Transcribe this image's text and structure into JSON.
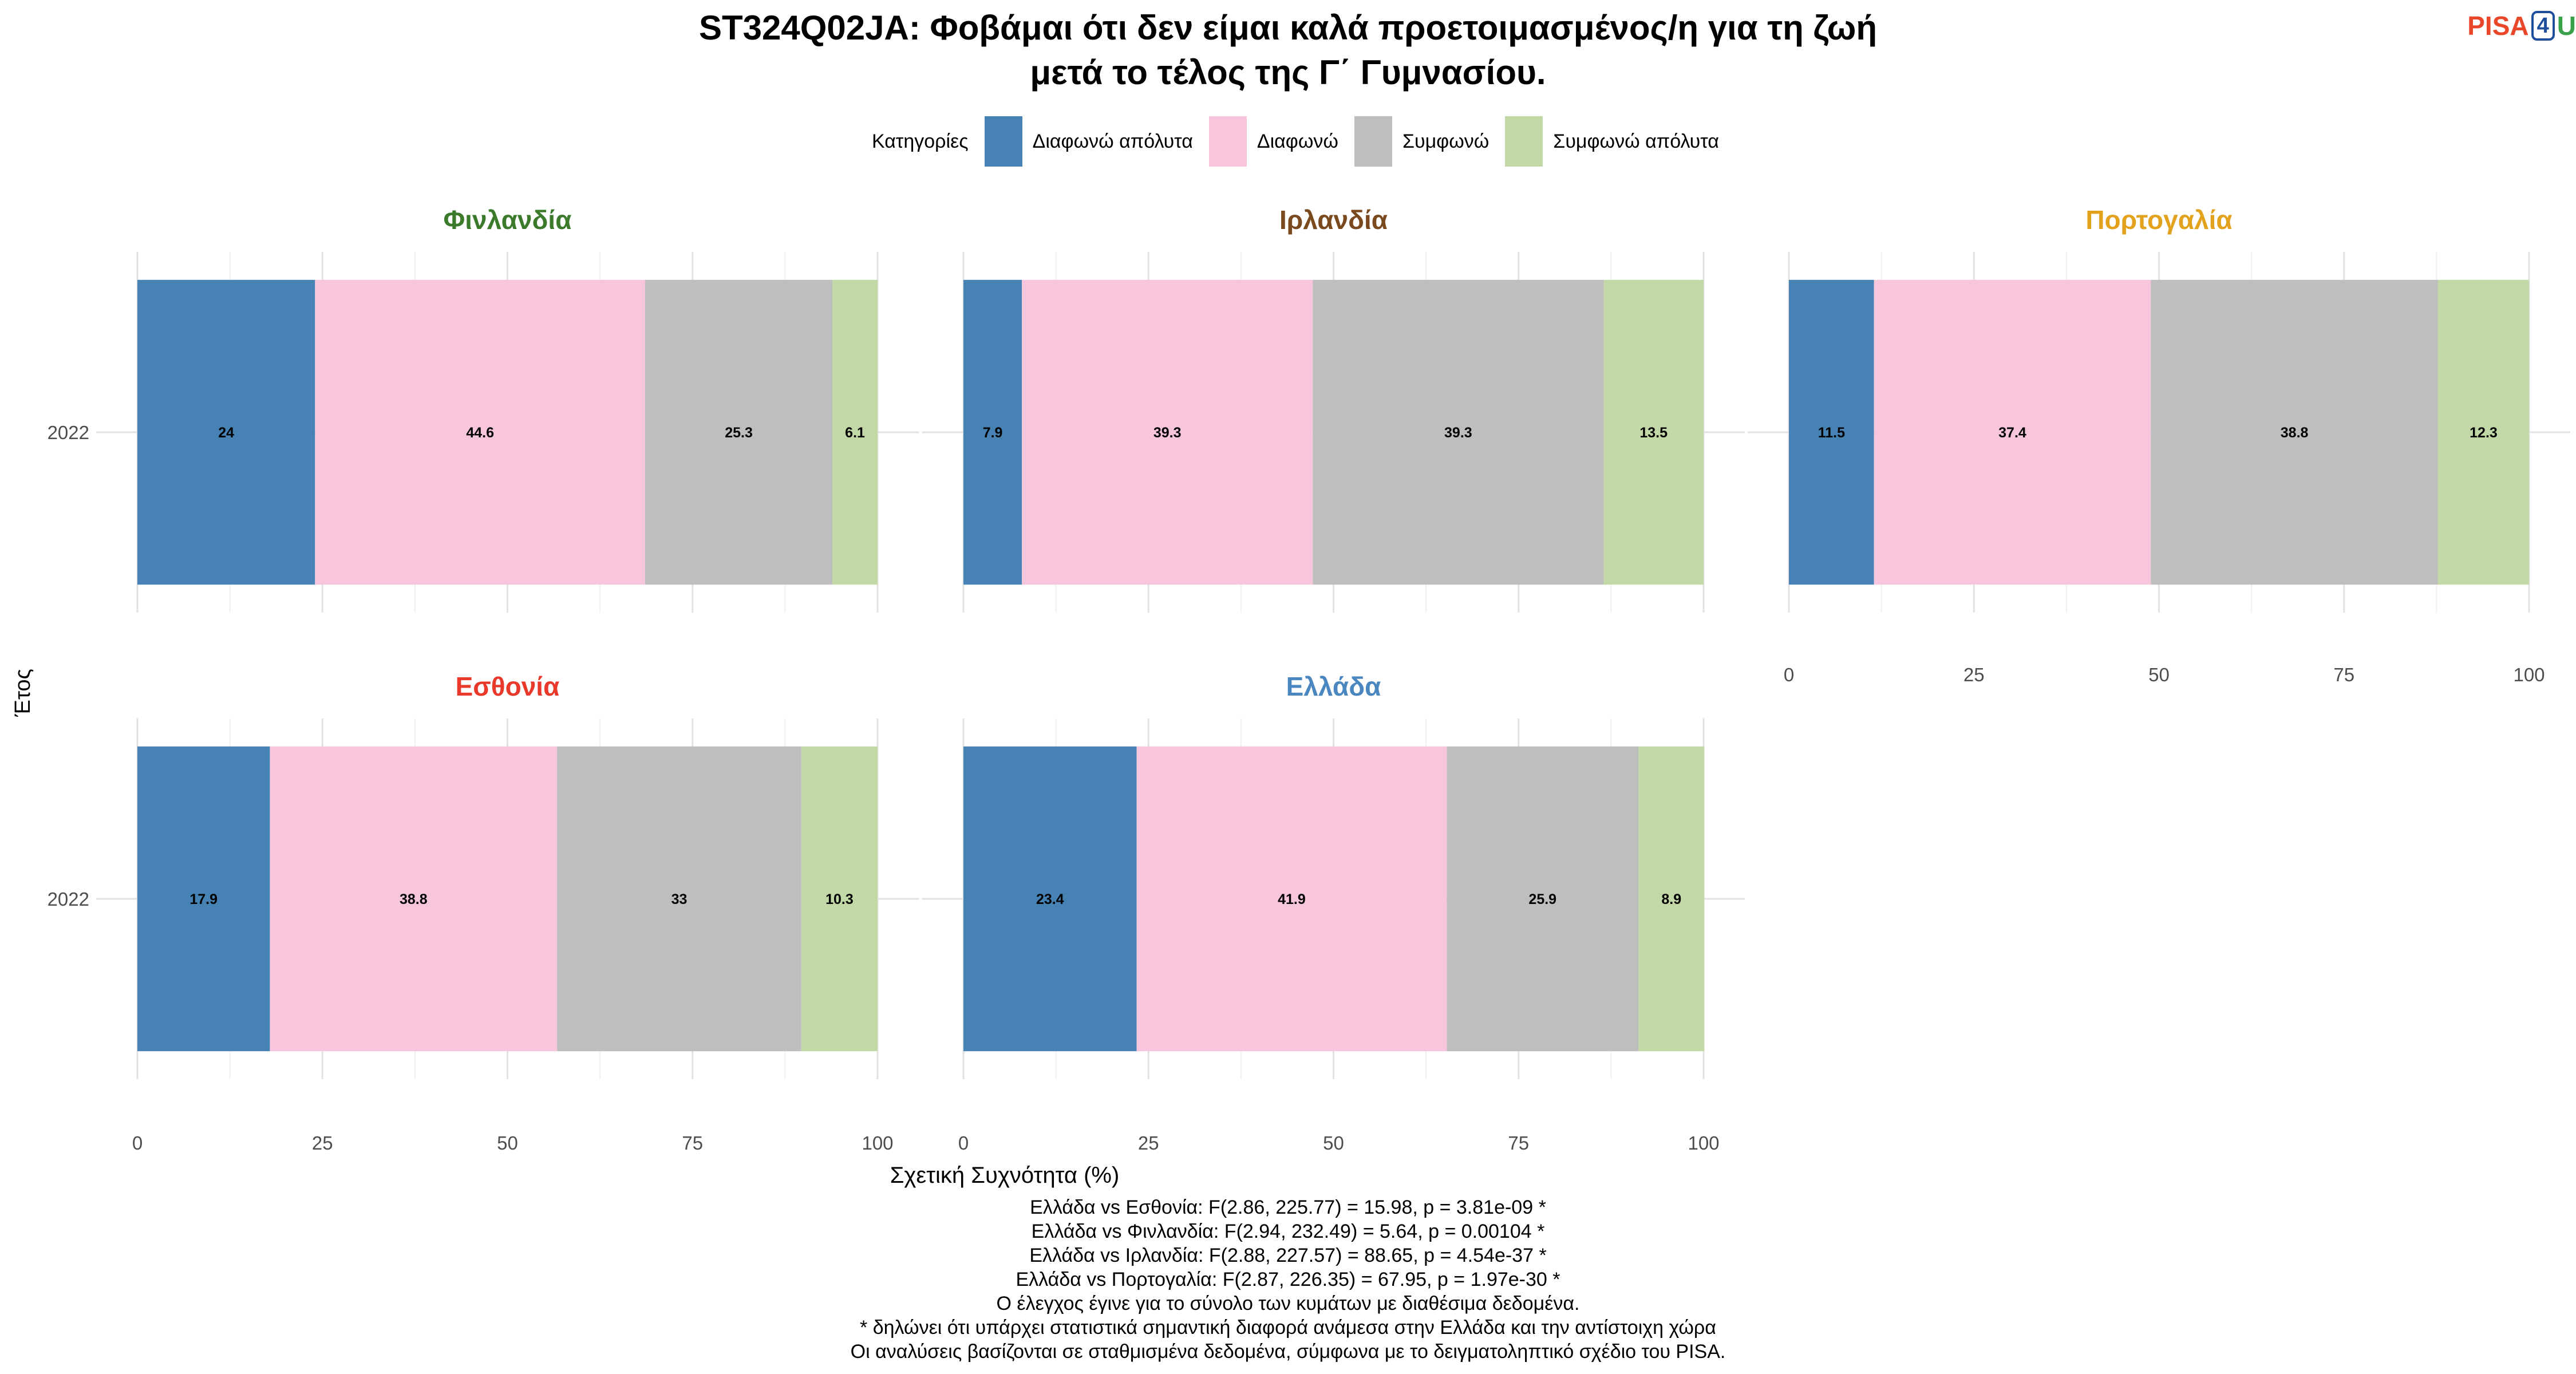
{
  "chart_data": {
    "type": "bar",
    "orientation": "horizontal",
    "stacked": true,
    "title_lines": [
      "ST324Q02JA: Φοβάμαι ότι δεν είμαι καλά προετοιμασμένος/η για τη ζωή",
      "μετά το τέλος της Γ΄ Γυμνασίου."
    ],
    "xlabel": "Σχετική Συχνότητα (%)",
    "ylabel": "Έτος",
    "xlim": [
      0,
      100
    ],
    "xticks": [
      0,
      25,
      50,
      75,
      100
    ],
    "grid": true,
    "legend_title": "Κατηγορίες",
    "legend_position": "top",
    "categories": [
      {
        "name": "Διαφωνώ απόλυτα",
        "color": "#4682b4"
      },
      {
        "name": "Διαφωνώ",
        "color": "#f7c6dc"
      },
      {
        "name": "Συμφωνώ",
        "color": "#bebebe"
      },
      {
        "name": "Συμφωνώ απόλυτα",
        "color": "#c2d8a7"
      }
    ],
    "panels": [
      {
        "country": "Φινλανδία",
        "title_color": "#3a7a2a",
        "year": "2022",
        "values": [
          24,
          44.6,
          25.3,
          6.1
        ],
        "labels": [
          "24",
          "44.6",
          "25.3",
          "6.1"
        ],
        "show_xticks": false
      },
      {
        "country": "Ιρλανδία",
        "title_color": "#7a4a1e",
        "year": "2022",
        "values": [
          7.9,
          39.3,
          39.3,
          13.5
        ],
        "labels": [
          "7.9",
          "39.3",
          "39.3",
          "13.5"
        ],
        "show_xticks": false
      },
      {
        "country": "Πορτογαλία",
        "title_color": "#e2a21e",
        "year": "2022",
        "values": [
          11.5,
          37.4,
          38.8,
          12.3
        ],
        "labels": [
          "11.5",
          "37.4",
          "38.8",
          "12.3"
        ],
        "show_xticks": true
      },
      {
        "country": "Εσθονία",
        "title_color": "#e8392a",
        "year": "2022",
        "values": [
          17.9,
          38.8,
          33,
          10.3
        ],
        "labels": [
          "17.9",
          "38.8",
          "33",
          "10.3"
        ],
        "show_xticks": true
      },
      {
        "country": "Ελλάδα",
        "title_color": "#4a86c0",
        "year": "2022",
        "values": [
          23.4,
          41.9,
          25.9,
          8.9
        ],
        "labels": [
          "23.4",
          "41.9",
          "25.9",
          "8.9"
        ],
        "show_xticks": true
      }
    ]
  },
  "logo": {
    "part1": "PISA",
    "part2": "4",
    "part3": "U"
  },
  "notes": [
    "Ελλάδα vs Εσθονία: F(2.86, 225.77) = 15.98, p = 3.81e-09 *",
    "Ελλάδα vs Φινλανδία: F(2.94, 232.49) = 5.64, p = 0.00104 *",
    "Ελλάδα vs Ιρλανδία: F(2.88, 227.57) = 88.65, p = 4.54e-37 *",
    "Ελλάδα vs Πορτογαλία: F(2.87, 226.35) = 67.95, p = 1.97e-30 *",
    "Ο έλεγχος έγινε για το σύνολο των κυμάτων με διαθέσιμα δεδομένα.",
    "* δηλώνει ότι υπάρχει στατιστικά σημαντική διαφορά ανάμεσα στην Ελλάδα και την αντίστοιχη χώρα",
    "Οι αναλύσεις βασίζονται σε σταθμισμένα δεδομένα, σύμφωνα με το δειγματοληπτικό σχέδιο του PISA."
  ]
}
